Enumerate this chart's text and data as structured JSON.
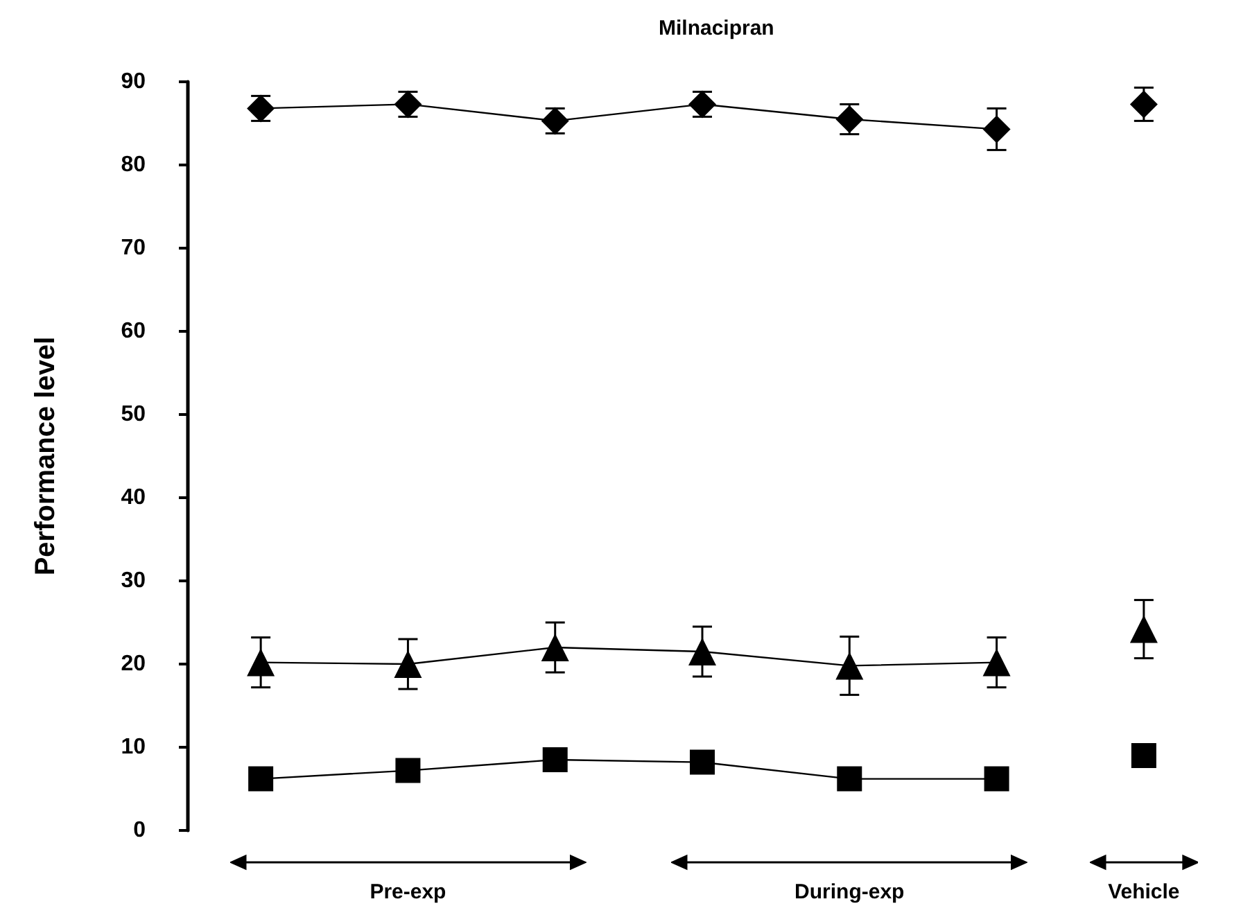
{
  "chart_data": {
    "type": "line",
    "title": "Milnacipran",
    "ylabel": "Performance level",
    "categories": [
      null,
      null,
      null,
      null,
      null,
      null,
      null
    ],
    "series": [
      {
        "color": "#000000",
        "marker": "diamond",
        "values": [
          86.8,
          87.3,
          85.3,
          87.3,
          85.5,
          84.3,
          null
        ],
        "errors": [
          1.5,
          1.5,
          1.5,
          1.5,
          1.8,
          2.5,
          null
        ]
      },
      {
        "type": "scatter",
        "color": "#000000",
        "marker": "diamond",
        "values": [
          null,
          null,
          null,
          null,
          null,
          null,
          87.3
        ],
        "errors": [
          null,
          null,
          null,
          null,
          null,
          null,
          2
        ]
      },
      {
        "color": "#000000",
        "marker": "triangle",
        "values": [
          20.2,
          20.0,
          22.0,
          21.5,
          19.8,
          20.2,
          null
        ],
        "errors": [
          3,
          3,
          3,
          3,
          3.5,
          3,
          null
        ]
      },
      {
        "type": "scatter",
        "color": "#000000",
        "marker": "triangle",
        "values": [
          null,
          null,
          null,
          null,
          null,
          null,
          24.2
        ],
        "errors": [
          null,
          null,
          null,
          null,
          null,
          null,
          3.5
        ]
      },
      {
        "color": "#000000",
        "marker": "square",
        "values": [
          6.2,
          7.2,
          8.5,
          8.2,
          6.2,
          6.2,
          null
        ]
      },
      {
        "type": "scatter",
        "color": "#000000",
        "marker": "square",
        "values": [
          null,
          null,
          null,
          null,
          null,
          null,
          9.0
        ]
      }
    ],
    "ylim": [
      0,
      90
    ],
    "yticks": [
      0,
      10,
      20,
      30,
      40,
      50,
      60,
      70,
      80,
      90
    ],
    "grid": false,
    "annotations": [
      "Pre-exp",
      "During-exp",
      "Vehicle"
    ]
  }
}
